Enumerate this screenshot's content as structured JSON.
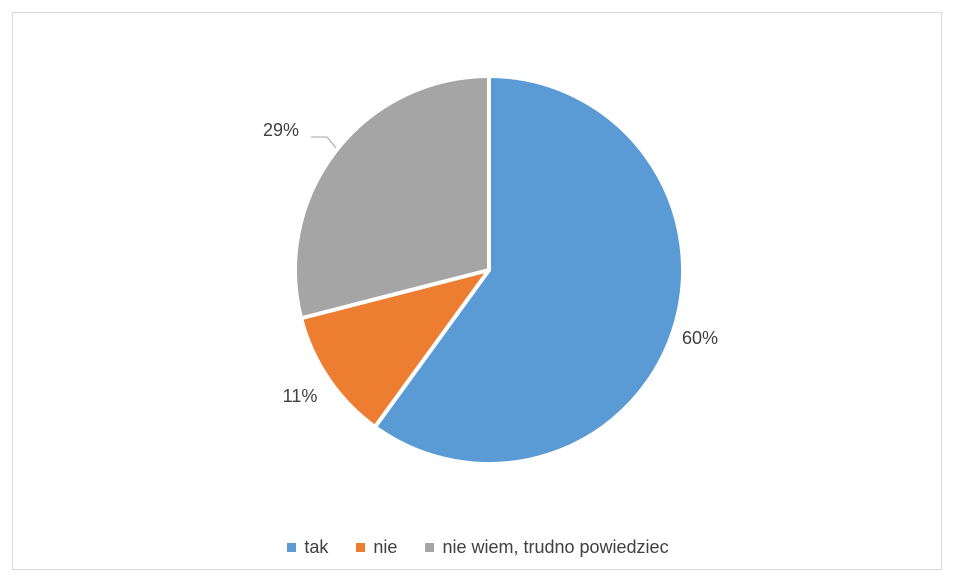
{
  "chart_data": {
    "type": "pie",
    "categories": [
      "tak",
      "nie",
      "nie wiem, trudno powiedziec"
    ],
    "values": [
      60,
      11,
      29
    ],
    "labels": [
      "60%",
      "11%",
      "29%"
    ],
    "colors": [
      "#5b9bd5",
      "#ed7d31",
      "#a5a5a5"
    ],
    "start_angle_deg": 0,
    "direction": "clockwise",
    "legend_position": "bottom",
    "title": ""
  }
}
